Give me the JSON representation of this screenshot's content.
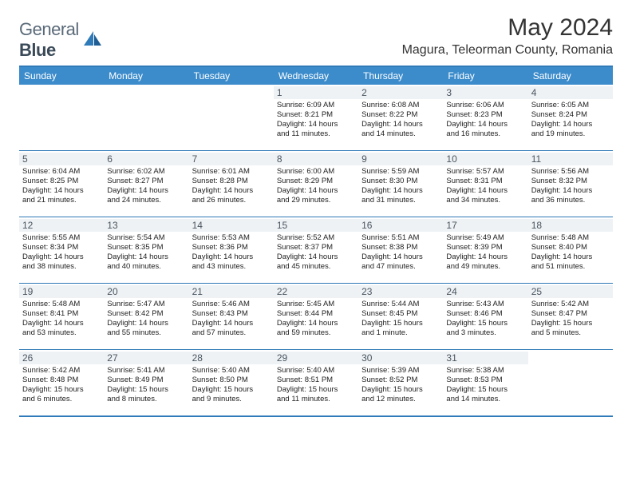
{
  "logo": {
    "text_a": "General",
    "text_b": "Blue"
  },
  "title": "May 2024",
  "location": "Magura, Teleorman County, Romania",
  "day_headers": [
    "Sunday",
    "Monday",
    "Tuesday",
    "Wednesday",
    "Thursday",
    "Friday",
    "Saturday"
  ],
  "colors": {
    "header_bg": "#3c8ccc",
    "border": "#2f7ab8",
    "daynum_bg": "#eef2f5",
    "text": "#222222",
    "logo_gray": "#5a6a78"
  },
  "typography": {
    "title_fontsize": 30,
    "location_fontsize": 16,
    "header_fontsize": 12,
    "daynum_fontsize": 12,
    "body_fontsize": 9.5
  },
  "weeks": [
    [
      {
        "day": "",
        "lines": []
      },
      {
        "day": "",
        "lines": []
      },
      {
        "day": "",
        "lines": []
      },
      {
        "day": "1",
        "lines": [
          "Sunrise: 6:09 AM",
          "Sunset: 8:21 PM",
          "Daylight: 14 hours",
          "and 11 minutes."
        ]
      },
      {
        "day": "2",
        "lines": [
          "Sunrise: 6:08 AM",
          "Sunset: 8:22 PM",
          "Daylight: 14 hours",
          "and 14 minutes."
        ]
      },
      {
        "day": "3",
        "lines": [
          "Sunrise: 6:06 AM",
          "Sunset: 8:23 PM",
          "Daylight: 14 hours",
          "and 16 minutes."
        ]
      },
      {
        "day": "4",
        "lines": [
          "Sunrise: 6:05 AM",
          "Sunset: 8:24 PM",
          "Daylight: 14 hours",
          "and 19 minutes."
        ]
      }
    ],
    [
      {
        "day": "5",
        "lines": [
          "Sunrise: 6:04 AM",
          "Sunset: 8:25 PM",
          "Daylight: 14 hours",
          "and 21 minutes."
        ]
      },
      {
        "day": "6",
        "lines": [
          "Sunrise: 6:02 AM",
          "Sunset: 8:27 PM",
          "Daylight: 14 hours",
          "and 24 minutes."
        ]
      },
      {
        "day": "7",
        "lines": [
          "Sunrise: 6:01 AM",
          "Sunset: 8:28 PM",
          "Daylight: 14 hours",
          "and 26 minutes."
        ]
      },
      {
        "day": "8",
        "lines": [
          "Sunrise: 6:00 AM",
          "Sunset: 8:29 PM",
          "Daylight: 14 hours",
          "and 29 minutes."
        ]
      },
      {
        "day": "9",
        "lines": [
          "Sunrise: 5:59 AM",
          "Sunset: 8:30 PM",
          "Daylight: 14 hours",
          "and 31 minutes."
        ]
      },
      {
        "day": "10",
        "lines": [
          "Sunrise: 5:57 AM",
          "Sunset: 8:31 PM",
          "Daylight: 14 hours",
          "and 34 minutes."
        ]
      },
      {
        "day": "11",
        "lines": [
          "Sunrise: 5:56 AM",
          "Sunset: 8:32 PM",
          "Daylight: 14 hours",
          "and 36 minutes."
        ]
      }
    ],
    [
      {
        "day": "12",
        "lines": [
          "Sunrise: 5:55 AM",
          "Sunset: 8:34 PM",
          "Daylight: 14 hours",
          "and 38 minutes."
        ]
      },
      {
        "day": "13",
        "lines": [
          "Sunrise: 5:54 AM",
          "Sunset: 8:35 PM",
          "Daylight: 14 hours",
          "and 40 minutes."
        ]
      },
      {
        "day": "14",
        "lines": [
          "Sunrise: 5:53 AM",
          "Sunset: 8:36 PM",
          "Daylight: 14 hours",
          "and 43 minutes."
        ]
      },
      {
        "day": "15",
        "lines": [
          "Sunrise: 5:52 AM",
          "Sunset: 8:37 PM",
          "Daylight: 14 hours",
          "and 45 minutes."
        ]
      },
      {
        "day": "16",
        "lines": [
          "Sunrise: 5:51 AM",
          "Sunset: 8:38 PM",
          "Daylight: 14 hours",
          "and 47 minutes."
        ]
      },
      {
        "day": "17",
        "lines": [
          "Sunrise: 5:49 AM",
          "Sunset: 8:39 PM",
          "Daylight: 14 hours",
          "and 49 minutes."
        ]
      },
      {
        "day": "18",
        "lines": [
          "Sunrise: 5:48 AM",
          "Sunset: 8:40 PM",
          "Daylight: 14 hours",
          "and 51 minutes."
        ]
      }
    ],
    [
      {
        "day": "19",
        "lines": [
          "Sunrise: 5:48 AM",
          "Sunset: 8:41 PM",
          "Daylight: 14 hours",
          "and 53 minutes."
        ]
      },
      {
        "day": "20",
        "lines": [
          "Sunrise: 5:47 AM",
          "Sunset: 8:42 PM",
          "Daylight: 14 hours",
          "and 55 minutes."
        ]
      },
      {
        "day": "21",
        "lines": [
          "Sunrise: 5:46 AM",
          "Sunset: 8:43 PM",
          "Daylight: 14 hours",
          "and 57 minutes."
        ]
      },
      {
        "day": "22",
        "lines": [
          "Sunrise: 5:45 AM",
          "Sunset: 8:44 PM",
          "Daylight: 14 hours",
          "and 59 minutes."
        ]
      },
      {
        "day": "23",
        "lines": [
          "Sunrise: 5:44 AM",
          "Sunset: 8:45 PM",
          "Daylight: 15 hours",
          "and 1 minute."
        ]
      },
      {
        "day": "24",
        "lines": [
          "Sunrise: 5:43 AM",
          "Sunset: 8:46 PM",
          "Daylight: 15 hours",
          "and 3 minutes."
        ]
      },
      {
        "day": "25",
        "lines": [
          "Sunrise: 5:42 AM",
          "Sunset: 8:47 PM",
          "Daylight: 15 hours",
          "and 5 minutes."
        ]
      }
    ],
    [
      {
        "day": "26",
        "lines": [
          "Sunrise: 5:42 AM",
          "Sunset: 8:48 PM",
          "Daylight: 15 hours",
          "and 6 minutes."
        ]
      },
      {
        "day": "27",
        "lines": [
          "Sunrise: 5:41 AM",
          "Sunset: 8:49 PM",
          "Daylight: 15 hours",
          "and 8 minutes."
        ]
      },
      {
        "day": "28",
        "lines": [
          "Sunrise: 5:40 AM",
          "Sunset: 8:50 PM",
          "Daylight: 15 hours",
          "and 9 minutes."
        ]
      },
      {
        "day": "29",
        "lines": [
          "Sunrise: 5:40 AM",
          "Sunset: 8:51 PM",
          "Daylight: 15 hours",
          "and 11 minutes."
        ]
      },
      {
        "day": "30",
        "lines": [
          "Sunrise: 5:39 AM",
          "Sunset: 8:52 PM",
          "Daylight: 15 hours",
          "and 12 minutes."
        ]
      },
      {
        "day": "31",
        "lines": [
          "Sunrise: 5:38 AM",
          "Sunset: 8:53 PM",
          "Daylight: 15 hours",
          "and 14 minutes."
        ]
      },
      {
        "day": "",
        "lines": []
      }
    ]
  ]
}
